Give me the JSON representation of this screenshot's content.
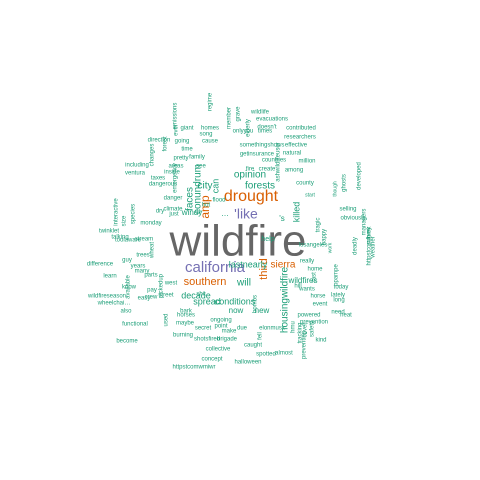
{
  "palette": {
    "teal": "#1b9e77",
    "orange": "#d95f02",
    "purple": "#7570b3",
    "gray": "#666666"
  },
  "words": [
    {
      "text": "wildfire",
      "color": "gray"
    },
    {
      "text": "california",
      "color": "purple"
    },
    {
      "text": "drought",
      "color": "orange"
    },
    {
      "text": "'like",
      "color": "purple"
    },
    {
      "text": "amp",
      "color": "orange"
    },
    {
      "text": "southern",
      "color": "orange"
    },
    {
      "text": "third",
      "color": "orange"
    },
    {
      "text": "sierra",
      "color": "orange"
    },
    {
      "text": "housingwildfire",
      "color": "teal"
    },
    {
      "text": "killed",
      "color": "teal"
    },
    {
      "text": "conundrum",
      "color": "teal"
    },
    {
      "text": "faces",
      "color": "teal"
    },
    {
      "text": "can",
      "color": "teal"
    },
    {
      "text": "city",
      "color": "teal"
    },
    {
      "text": "forests",
      "color": "teal"
    },
    {
      "text": "opinion",
      "color": "teal"
    },
    {
      "text": "windy",
      "color": "teal"
    },
    {
      "text": "will",
      "color": "teal"
    },
    {
      "text": "lastnearly",
      "color": "teal"
    },
    {
      "text": "decade",
      "color": "teal"
    },
    {
      "text": "spread",
      "color": "teal"
    },
    {
      "text": "conditions",
      "color": "teal"
    },
    {
      "text": "now",
      "color": "teal"
    },
    {
      "text": "new",
      "color": "teal"
    },
    {
      "text": "wildfires",
      "color": "teal"
    },
    {
      "text": "'s",
      "color": "teal"
    },
    {
      "text": "…",
      "color": "teal"
    },
    {
      "text": "evacuations",
      "color": "teal"
    },
    {
      "text": "doesn't",
      "color": "teal"
    },
    {
      "text": "contributed",
      "color": "teal"
    },
    {
      "text": "researchers",
      "color": "teal"
    },
    {
      "text": "somethingshows",
      "color": "teal"
    },
    {
      "text": "effective",
      "color": "teal"
    },
    {
      "text": "insurance",
      "color": "teal"
    },
    {
      "text": "natural",
      "color": "teal"
    },
    {
      "text": "countries",
      "color": "teal"
    },
    {
      "text": "million",
      "color": "teal"
    },
    {
      "text": "among",
      "color": "teal"
    },
    {
      "text": "create",
      "color": "teal"
    },
    {
      "text": "county",
      "color": "teal"
    },
    {
      "text": "start",
      "color": "teal"
    },
    {
      "text": "selling",
      "color": "teal"
    },
    {
      "text": "obviously",
      "color": "teal"
    },
    {
      "text": "though",
      "color": "teal"
    },
    {
      "text": "losangeles",
      "color": "teal"
    },
    {
      "text": "really",
      "color": "teal"
    },
    {
      "text": "home",
      "color": "teal"
    },
    {
      "text": "fast",
      "color": "teal"
    },
    {
      "text": "work",
      "color": "teal"
    },
    {
      "text": "lately",
      "color": "teal"
    },
    {
      "text": "long",
      "color": "teal"
    },
    {
      "text": "heat",
      "color": "teal"
    },
    {
      "text": "prevention",
      "color": "teal"
    },
    {
      "text": "kind",
      "color": "teal"
    },
    {
      "text": "need",
      "color": "teal"
    },
    {
      "text": "today",
      "color": "teal"
    },
    {
      "text": "ppampe",
      "color": "teal"
    },
    {
      "text": "event",
      "color": "teal"
    },
    {
      "text": "powered",
      "color": "teal"
    },
    {
      "text": "almost",
      "color": "teal"
    },
    {
      "text": "spotted",
      "color": "teal"
    },
    {
      "text": "caught",
      "color": "teal"
    },
    {
      "text": "concept",
      "color": "teal"
    },
    {
      "text": "collective",
      "color": "teal"
    },
    {
      "text": "halloween",
      "color": "teal"
    },
    {
      "text": "httpstcomwmiwr",
      "color": "teal"
    },
    {
      "text": "shotsfired",
      "color": "teal"
    },
    {
      "text": "brigade",
      "color": "teal"
    },
    {
      "text": "burning",
      "color": "teal"
    },
    {
      "text": "maybe",
      "color": "teal"
    },
    {
      "text": "secret",
      "color": "teal"
    },
    {
      "text": "make",
      "color": "teal"
    },
    {
      "text": "due",
      "color": "teal"
    },
    {
      "text": "elonmusk",
      "color": "teal"
    },
    {
      "text": "horses",
      "color": "teal"
    },
    {
      "text": "ongoing",
      "color": "teal"
    },
    {
      "text": "bark",
      "color": "teal"
    },
    {
      "text": "also",
      "color": "teal"
    },
    {
      "text": "functional",
      "color": "teal"
    },
    {
      "text": "become",
      "color": "teal"
    },
    {
      "text": "wheelchai…",
      "color": "teal"
    },
    {
      "text": "wildfireseason",
      "color": "teal"
    },
    {
      "text": "difference",
      "color": "teal"
    },
    {
      "text": "twinklet",
      "color": "teal"
    },
    {
      "text": "talking",
      "color": "teal"
    },
    {
      "text": "toolaware",
      "color": "teal"
    },
    {
      "text": "stream",
      "color": "teal"
    },
    {
      "text": "trees",
      "color": "teal"
    },
    {
      "text": "monday",
      "color": "teal"
    },
    {
      "text": "danger",
      "color": "teal"
    },
    {
      "text": "climate",
      "color": "teal"
    },
    {
      "text": "dangerous",
      "color": "teal"
    },
    {
      "text": "inside",
      "color": "teal"
    },
    {
      "text": "ventura",
      "color": "teal"
    },
    {
      "text": "including",
      "color": "teal"
    },
    {
      "text": "pretty",
      "color": "teal"
    },
    {
      "text": "family",
      "color": "teal"
    },
    {
      "text": "time",
      "color": "teal"
    },
    {
      "text": "going",
      "color": "teal"
    },
    {
      "text": "cause",
      "color": "teal"
    },
    {
      "text": "song",
      "color": "teal"
    },
    {
      "text": "homes",
      "color": "teal"
    },
    {
      "text": "taxes",
      "color": "teal"
    },
    {
      "text": "areas",
      "color": "teal"
    },
    {
      "text": "see",
      "color": "teal"
    },
    {
      "text": "flood",
      "color": "teal"
    },
    {
      "text": "hot",
      "color": "teal"
    },
    {
      "text": "dry",
      "color": "teal"
    },
    {
      "text": "just",
      "color": "teal"
    },
    {
      "text": "help",
      "color": "teal"
    },
    {
      "text": "fire",
      "color": "teal"
    },
    {
      "text": "get",
      "color": "teal"
    },
    {
      "text": "wildlife",
      "color": "teal"
    },
    {
      "text": "times",
      "color": "teal"
    },
    {
      "text": "onlyyou",
      "color": "teal"
    },
    {
      "text": "wants",
      "color": "teal"
    },
    {
      "text": "horse",
      "color": "teal"
    },
    {
      "text": "shit",
      "color": "teal"
    },
    {
      "text": "hill",
      "color": "teal"
    },
    {
      "text": "west",
      "color": "teal"
    },
    {
      "text": "pay",
      "color": "teal"
    },
    {
      "text": "parts",
      "color": "teal"
    },
    {
      "text": "crew",
      "color": "teal"
    },
    {
      "text": "know",
      "color": "teal"
    },
    {
      "text": "easy",
      "color": "teal"
    },
    {
      "text": "many",
      "color": "teal"
    },
    {
      "text": "learn",
      "color": "teal"
    },
    {
      "text": "street",
      "color": "teal"
    },
    {
      "text": "guy",
      "color": "teal"
    },
    {
      "text": "years",
      "color": "teal"
    },
    {
      "text": "point",
      "color": "teal"
    },
    {
      "text": "size",
      "color": "teal"
    },
    {
      "text": "species",
      "color": "teal"
    },
    {
      "text": "emergency",
      "color": "teal"
    },
    {
      "text": "forest",
      "color": "teal"
    },
    {
      "text": "changes",
      "color": "teal"
    },
    {
      "text": "direction",
      "color": "teal"
    },
    {
      "text": "ever",
      "color": "teal"
    },
    {
      "text": "giant",
      "color": "teal"
    },
    {
      "text": "grave",
      "color": "teal"
    },
    {
      "text": "member",
      "color": "teal"
    },
    {
      "text": "regime",
      "color": "teal"
    },
    {
      "text": "elderly",
      "color": "teal"
    },
    {
      "text": "emissions",
      "color": "teal"
    },
    {
      "text": "ghosts",
      "color": "teal"
    },
    {
      "text": "developed",
      "color": "teal"
    },
    {
      "text": "managers",
      "color": "teal"
    },
    {
      "text": "survey",
      "color": "teal"
    },
    {
      "text": "happy",
      "color": "teal"
    },
    {
      "text": "weather",
      "color": "teal"
    },
    {
      "text": "interactive",
      "color": "teal"
    },
    {
      "text": "httpstcorxfbmk",
      "color": "teal"
    },
    {
      "text": "wheat",
      "color": "teal"
    },
    {
      "text": "pickedup",
      "color": "teal"
    },
    {
      "text": "available",
      "color": "teal"
    },
    {
      "text": "tragic",
      "color": "teal"
    },
    {
      "text": "used",
      "color": "teal"
    },
    {
      "text": "hmu",
      "color": "teal"
    },
    {
      "text": "safety",
      "color": "teal"
    },
    {
      "text": "tracking",
      "color": "teal"
    },
    {
      "text": "cover",
      "color": "teal"
    },
    {
      "text": "preventing",
      "color": "teal"
    },
    {
      "text": "bombs",
      "color": "teal"
    },
    {
      "text": "deadly",
      "color": "teal"
    },
    {
      "text": "ashwildlifeuser",
      "color": "teal"
    },
    {
      "text": "fell",
      "color": "teal"
    },
    {
      "text": "mariag",
      "color": "teal"
    }
  ]
}
